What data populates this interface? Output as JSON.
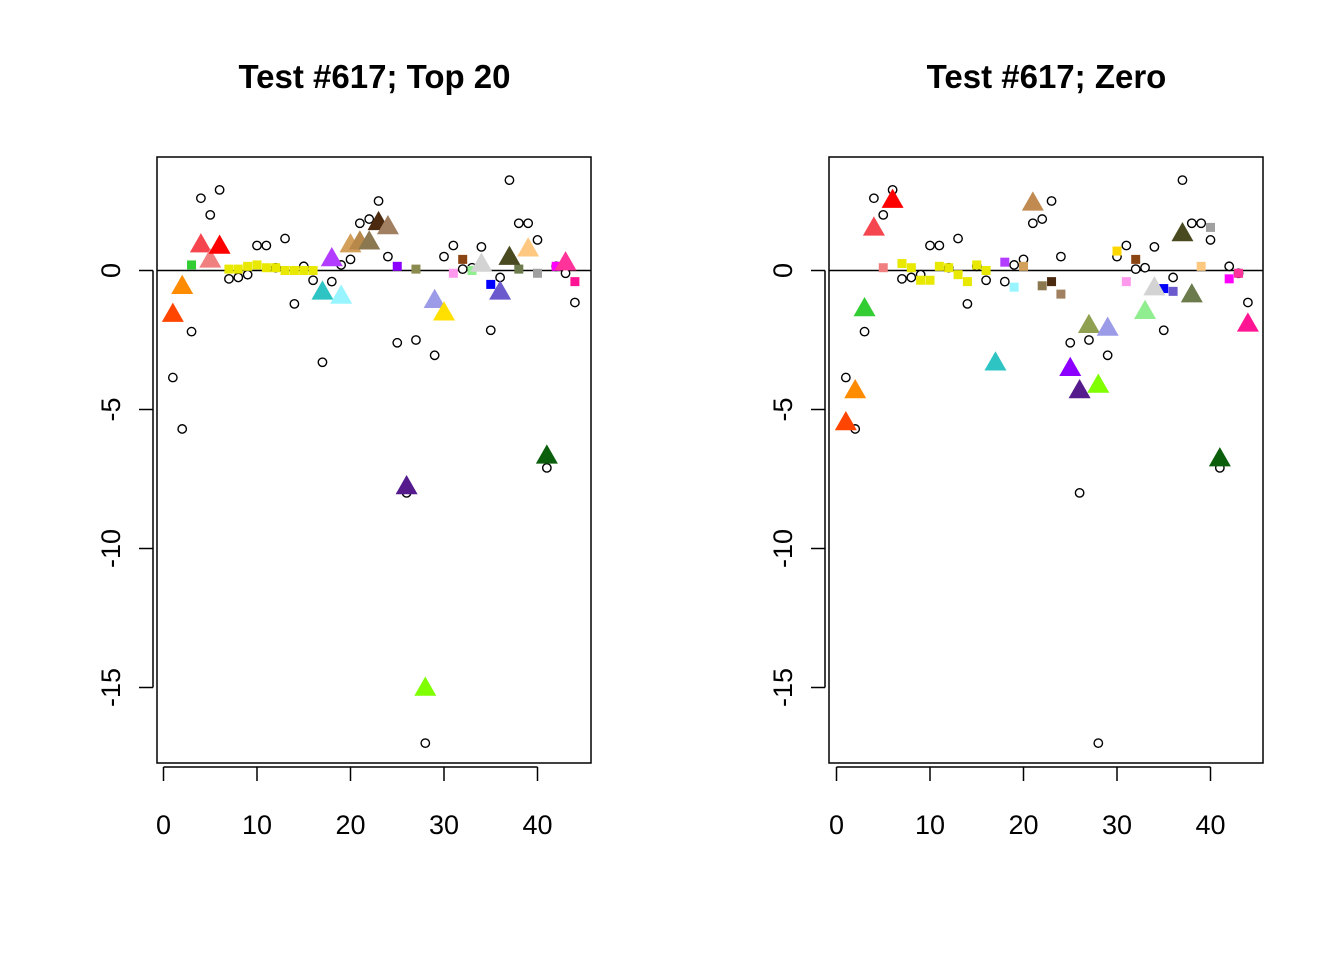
{
  "chart_data": [
    {
      "type": "scatter",
      "title": "Test #617; Top 20",
      "xlabel": "",
      "ylabel": "",
      "xlim": [
        0,
        45
      ],
      "ylim": [
        -17.5,
        4
      ],
      "x_ticks": [
        0,
        10,
        20,
        30,
        40
      ],
      "y_ticks": [
        0,
        -5,
        -10,
        -15
      ],
      "x_tick_labels": [
        "0",
        "10",
        "20",
        "30",
        "40"
      ],
      "y_tick_labels": [
        "0",
        "-5",
        "-10",
        "-15"
      ],
      "reference_line_y": 0,
      "grid": false,
      "legend": "none",
      "series": [
        {
          "marker": "circle",
          "points": [
            [
              1,
              -3.85
            ],
            [
              2,
              -5.7
            ],
            [
              3,
              -2.2
            ],
            [
              4,
              2.6
            ],
            [
              5,
              2.0
            ],
            [
              6,
              2.9
            ],
            [
              7,
              -0.3
            ],
            [
              8,
              -0.25
            ],
            [
              9,
              -0.15
            ],
            [
              10,
              0.9
            ],
            [
              11,
              0.9
            ],
            [
              12,
              0.1
            ],
            [
              13,
              1.15
            ],
            [
              14,
              -1.2
            ],
            [
              15,
              0.15
            ],
            [
              16,
              -0.35
            ],
            [
              17,
              -3.3
            ],
            [
              18,
              -0.4
            ],
            [
              19,
              0.2
            ],
            [
              20,
              0.4
            ],
            [
              21,
              1.7
            ],
            [
              22,
              1.85
            ],
            [
              23,
              2.5
            ],
            [
              24,
              0.5
            ],
            [
              25,
              -2.6
            ],
            [
              26,
              -8.0
            ],
            [
              27,
              -2.5
            ],
            [
              28,
              -17.0
            ],
            [
              29,
              -3.05
            ],
            [
              30,
              0.5
            ],
            [
              31,
              0.9
            ],
            [
              32,
              0.05
            ],
            [
              33,
              0.1
            ],
            [
              34,
              0.85
            ],
            [
              35,
              -2.15
            ],
            [
              36,
              -0.25
            ],
            [
              37,
              3.25
            ],
            [
              38,
              1.7
            ],
            [
              39,
              1.7
            ],
            [
              40,
              1.1
            ],
            [
              41,
              -7.1
            ],
            [
              42,
              0.15
            ],
            [
              43,
              -0.1
            ],
            [
              44,
              -1.15
            ]
          ]
        },
        {
          "marker": "triangle",
          "points": [
            {
              "x": 1,
              "y": -1.55,
              "color": "#FF4500"
            },
            {
              "x": 2,
              "y": -0.55,
              "color": "#FF8C00"
            },
            {
              "x": 4,
              "y": 0.95,
              "color": "#F5454E"
            },
            {
              "x": 5,
              "y": 0.4,
              "color": "#F08080"
            },
            {
              "x": 6,
              "y": 0.9,
              "color": "#FF0000"
            },
            {
              "x": 17,
              "y": -0.75,
              "color": "#2EC4C4"
            },
            {
              "x": 18,
              "y": 0.45,
              "color": "#B23CFF"
            },
            {
              "x": 19,
              "y": -0.9,
              "color": "#98F5FF"
            },
            {
              "x": 20,
              "y": 0.95,
              "color": "#D2A05A"
            },
            {
              "x": 21,
              "y": 1.05,
              "color": "#B8884A"
            },
            {
              "x": 22,
              "y": 1.05,
              "color": "#8C7850"
            },
            {
              "x": 23,
              "y": 1.75,
              "color": "#4B2A10"
            },
            {
              "x": 24,
              "y": 1.6,
              "color": "#A08060"
            },
            {
              "x": 26,
              "y": -7.75,
              "color": "#551A8B"
            },
            {
              "x": 28,
              "y": -15.0,
              "color": "#7FFF00"
            },
            {
              "x": 29,
              "y": -1.05,
              "color": "#9B9BE8"
            },
            {
              "x": 30,
              "y": -1.5,
              "color": "#FFE000"
            },
            {
              "x": 34,
              "y": 0.25,
              "color": "#D3D3D3"
            },
            {
              "x": 36,
              "y": -0.75,
              "color": "#6A5ACD"
            },
            {
              "x": 37,
              "y": 0.5,
              "color": "#4A4A20"
            },
            {
              "x": 39,
              "y": 0.8,
              "color": "#FFC880"
            },
            {
              "x": 41,
              "y": -6.65,
              "color": "#0B5E0B"
            },
            {
              "x": 43,
              "y": 0.3,
              "color": "#FF3399"
            }
          ]
        },
        {
          "marker": "square",
          "points": [
            {
              "x": 3,
              "y": 0.2,
              "color": "#32CD32"
            },
            {
              "x": 7,
              "y": 0.05,
              "color": "#E8E800"
            },
            {
              "x": 8,
              "y": 0.05,
              "color": "#E8E800"
            },
            {
              "x": 9,
              "y": 0.15,
              "color": "#E8E800"
            },
            {
              "x": 10,
              "y": 0.2,
              "color": "#E8E800"
            },
            {
              "x": 11,
              "y": 0.1,
              "color": "#E8E800"
            },
            {
              "x": 12,
              "y": 0.1,
              "color": "#E8E800"
            },
            {
              "x": 13,
              "y": 0.0,
              "color": "#E8E800"
            },
            {
              "x": 14,
              "y": 0.0,
              "color": "#E8E800"
            },
            {
              "x": 15,
              "y": 0.0,
              "color": "#E8E800"
            },
            {
              "x": 16,
              "y": 0.0,
              "color": "#E8E800"
            },
            {
              "x": 25,
              "y": 0.15,
              "color": "#8B00FF"
            },
            {
              "x": 27,
              "y": 0.05,
              "color": "#8B8B50"
            },
            {
              "x": 31,
              "y": -0.1,
              "color": "#FF99EE"
            },
            {
              "x": 32,
              "y": 0.4,
              "color": "#8B4513"
            },
            {
              "x": 33,
              "y": 0.0,
              "color": "#90EE90"
            },
            {
              "x": 35,
              "y": -0.5,
              "color": "#0000FF"
            },
            {
              "x": 38,
              "y": 0.05,
              "color": "#6B7B4B"
            },
            {
              "x": 40,
              "y": -0.1,
              "color": "#A0A0A0"
            },
            {
              "x": 42,
              "y": 0.15,
              "color": "#FF00FF"
            },
            {
              "x": 44,
              "y": -0.4,
              "color": "#FF1493"
            }
          ]
        }
      ]
    },
    {
      "type": "scatter",
      "title": "Test #617; Zero",
      "xlabel": "",
      "ylabel": "",
      "xlim": [
        0,
        45
      ],
      "ylim": [
        -17.5,
        4
      ],
      "x_ticks": [
        0,
        10,
        20,
        30,
        40
      ],
      "y_ticks": [
        0,
        -5,
        -10,
        -15
      ],
      "x_tick_labels": [
        "0",
        "10",
        "20",
        "30",
        "40"
      ],
      "y_tick_labels": [
        "0",
        "-5",
        "-10",
        "-15"
      ],
      "reference_line_y": 0,
      "grid": false,
      "legend": "none",
      "series": [
        {
          "marker": "circle",
          "points": [
            [
              1,
              -3.85
            ],
            [
              2,
              -5.7
            ],
            [
              3,
              -2.2
            ],
            [
              4,
              2.6
            ],
            [
              5,
              2.0
            ],
            [
              6,
              2.9
            ],
            [
              7,
              -0.3
            ],
            [
              8,
              -0.25
            ],
            [
              9,
              -0.15
            ],
            [
              10,
              0.9
            ],
            [
              11,
              0.9
            ],
            [
              12,
              0.1
            ],
            [
              13,
              1.15
            ],
            [
              14,
              -1.2
            ],
            [
              15,
              0.15
            ],
            [
              16,
              -0.35
            ],
            [
              17,
              -3.3
            ],
            [
              18,
              -0.4
            ],
            [
              19,
              0.2
            ],
            [
              20,
              0.4
            ],
            [
              21,
              1.7
            ],
            [
              22,
              1.85
            ],
            [
              23,
              2.5
            ],
            [
              24,
              0.5
            ],
            [
              25,
              -2.6
            ],
            [
              26,
              -8.0
            ],
            [
              27,
              -2.5
            ],
            [
              28,
              -17.0
            ],
            [
              29,
              -3.05
            ],
            [
              30,
              0.5
            ],
            [
              31,
              0.9
            ],
            [
              32,
              0.05
            ],
            [
              33,
              0.1
            ],
            [
              34,
              0.85
            ],
            [
              35,
              -2.15
            ],
            [
              36,
              -0.25
            ],
            [
              37,
              3.25
            ],
            [
              38,
              1.7
            ],
            [
              39,
              1.7
            ],
            [
              40,
              1.1
            ],
            [
              41,
              -7.1
            ],
            [
              42,
              0.15
            ],
            [
              43,
              -0.1
            ],
            [
              44,
              -1.15
            ]
          ]
        },
        {
          "marker": "triangle",
          "points": [
            {
              "x": 1,
              "y": -5.45,
              "color": "#FF4500"
            },
            {
              "x": 2,
              "y": -4.3,
              "color": "#FF8C00"
            },
            {
              "x": 3,
              "y": -1.35,
              "color": "#32CD32"
            },
            {
              "x": 4,
              "y": 1.55,
              "color": "#F5454E"
            },
            {
              "x": 6,
              "y": 2.55,
              "color": "#FF0000"
            },
            {
              "x": 17,
              "y": -3.3,
              "color": "#2EC4C4"
            },
            {
              "x": 21,
              "y": 2.45,
              "color": "#C08A50"
            },
            {
              "x": 25,
              "y": -3.5,
              "color": "#8B00FF"
            },
            {
              "x": 26,
              "y": -4.3,
              "color": "#551A8B"
            },
            {
              "x": 27,
              "y": -1.95,
              "color": "#8FA050"
            },
            {
              "x": 28,
              "y": -4.1,
              "color": "#7FFF00"
            },
            {
              "x": 29,
              "y": -2.05,
              "color": "#9B9BE8"
            },
            {
              "x": 33,
              "y": -1.45,
              "color": "#90EE90"
            },
            {
              "x": 34,
              "y": -0.6,
              "color": "#D3D3D3"
            },
            {
              "x": 37,
              "y": 1.35,
              "color": "#4A4A20"
            },
            {
              "x": 38,
              "y": -0.85,
              "color": "#6B7B4B"
            },
            {
              "x": 41,
              "y": -6.75,
              "color": "#0B5E0B"
            },
            {
              "x": 44,
              "y": -1.9,
              "color": "#FF1493"
            }
          ]
        },
        {
          "marker": "square",
          "points": [
            {
              "x": 5,
              "y": 0.1,
              "color": "#F08080"
            },
            {
              "x": 7,
              "y": 0.25,
              "color": "#E8E800"
            },
            {
              "x": 8,
              "y": 0.1,
              "color": "#E8E800"
            },
            {
              "x": 9,
              "y": -0.35,
              "color": "#E8E800"
            },
            {
              "x": 10,
              "y": -0.35,
              "color": "#E8E800"
            },
            {
              "x": 11,
              "y": 0.15,
              "color": "#E8E800"
            },
            {
              "x": 12,
              "y": 0.1,
              "color": "#E8E800"
            },
            {
              "x": 13,
              "y": -0.15,
              "color": "#E8E800"
            },
            {
              "x": 14,
              "y": -0.4,
              "color": "#E8E800"
            },
            {
              "x": 15,
              "y": 0.2,
              "color": "#E8E800"
            },
            {
              "x": 16,
              "y": 0.0,
              "color": "#E8E800"
            },
            {
              "x": 18,
              "y": 0.3,
              "color": "#B23CFF"
            },
            {
              "x": 19,
              "y": -0.6,
              "color": "#98F5FF"
            },
            {
              "x": 20,
              "y": 0.15,
              "color": "#D2A05A"
            },
            {
              "x": 22,
              "y": -0.55,
              "color": "#8C7850"
            },
            {
              "x": 23,
              "y": -0.4,
              "color": "#4B2A10"
            },
            {
              "x": 24,
              "y": -0.85,
              "color": "#A08060"
            },
            {
              "x": 30,
              "y": 0.7,
              "color": "#FFD700"
            },
            {
              "x": 31,
              "y": -0.4,
              "color": "#FF99EE"
            },
            {
              "x": 32,
              "y": 0.4,
              "color": "#8B4513"
            },
            {
              "x": 35,
              "y": -0.65,
              "color": "#0000FF"
            },
            {
              "x": 36,
              "y": -0.75,
              "color": "#6A5ACD"
            },
            {
              "x": 39,
              "y": 0.15,
              "color": "#FFC880"
            },
            {
              "x": 40,
              "y": 1.55,
              "color": "#A0A0A0"
            },
            {
              "x": 42,
              "y": -0.3,
              "color": "#FF00FF"
            },
            {
              "x": 43,
              "y": -0.1,
              "color": "#FF3399"
            }
          ]
        }
      ]
    }
  ]
}
